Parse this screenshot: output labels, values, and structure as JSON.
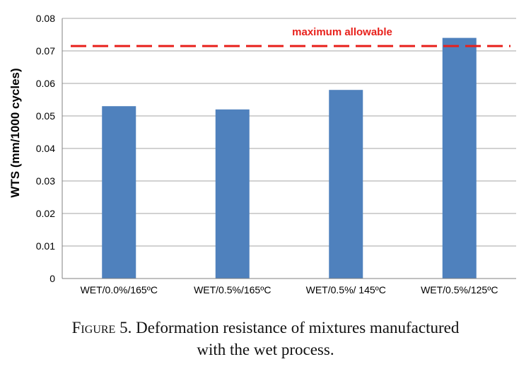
{
  "chart_data": {
    "type": "bar",
    "title": "",
    "xlabel": "",
    "ylabel": "WTS (mm/1000 cycles)",
    "ylim": [
      0,
      0.08
    ],
    "yticks": [
      "0",
      "0.01",
      "0.02",
      "0.03",
      "0.04",
      "0.05",
      "0.06",
      "0.07",
      "0.08"
    ],
    "grid": true,
    "categories": [
      "WET/0.0%/165ºC",
      "WET/0.5%/165ºC",
      "WET/0.5%/ 145ºC",
      "WET/0.5%/125ºC"
    ],
    "values": [
      0.053,
      0.052,
      0.058,
      0.074
    ],
    "bar_color": "#4f81bd",
    "reference_line": {
      "value": 0.0715,
      "label": "maximum allowable",
      "color": "#e8211c"
    }
  },
  "caption": {
    "label": "Figure 5.",
    "text": " Deformation resistance of mixtures manufactured",
    "text_line2": "with the wet process."
  }
}
